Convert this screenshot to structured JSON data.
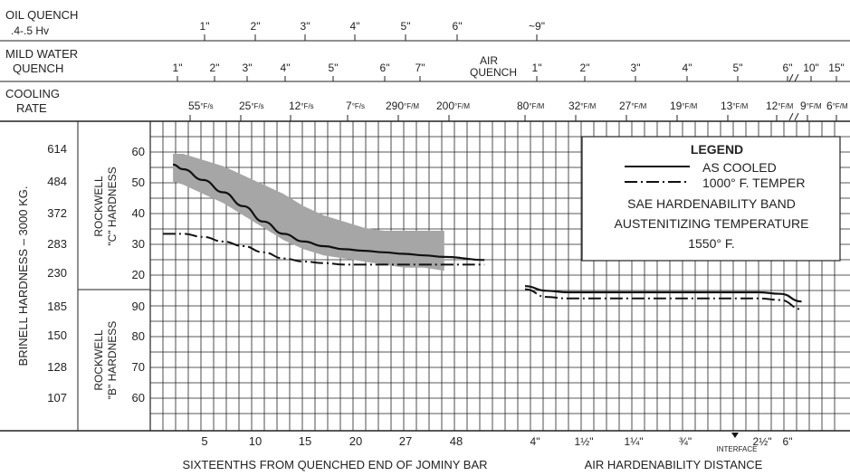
{
  "header": {
    "title_fragment": "Jominy hardenability band - 1550° F austenitizing",
    "oil_quench_label": [
      "OIL QUENCH",
      ".4-.5 Hv"
    ],
    "mild_water_label": [
      "MILD WATER",
      "QUENCH"
    ],
    "air_quench_label": [
      "AIR",
      "QUENCH"
    ],
    "cooling_rate_label": [
      "COOLING",
      "RATE"
    ],
    "oil_quench_ticks": [
      "1\"",
      "2\"",
      "3\"",
      "4\"",
      "5\"",
      "6\"",
      "~9\""
    ],
    "mild_water_ticks": [
      "1\"",
      "2\"",
      "3\"",
      "4\"",
      "5\"",
      "6\"",
      "7\""
    ],
    "air_quench_ticks": [
      "1\"",
      "2\"",
      "3\"",
      "4\"",
      "5\"",
      "6\"",
      "10\"",
      "15\""
    ],
    "cooling_rate_ticks": [
      {
        "value": "55",
        "unit": "°F/s"
      },
      {
        "value": "25",
        "unit": "°F/s"
      },
      {
        "value": "12",
        "unit": "°F/s"
      },
      {
        "value": "7",
        "unit": "°F/s"
      },
      {
        "value": "290",
        "unit": "°F/M"
      },
      {
        "value": "200",
        "unit": "°F/M"
      },
      {
        "value": "80",
        "unit": "°F/M"
      },
      {
        "value": "32",
        "unit": "°F/M"
      },
      {
        "value": "27",
        "unit": "°F/M"
      },
      {
        "value": "19",
        "unit": "°F/M"
      },
      {
        "value": "13",
        "unit": "°F/M"
      },
      {
        "value": "12",
        "unit": "°F/M"
      },
      {
        "value": "9",
        "unit": "°F/M"
      },
      {
        "value": "6",
        "unit": "°F/M"
      }
    ]
  },
  "axes": {
    "brinell_label": "BRINELL HARDNESS – 3000 KG.",
    "brinell_ticks": [
      "614",
      "484",
      "372",
      "283",
      "230",
      "185",
      "150",
      "128",
      "107"
    ],
    "rc_label": [
      "ROCKWELL",
      "\"C\" HARDNESS"
    ],
    "rc_ticks": [
      "60",
      "50",
      "40",
      "30",
      "20"
    ],
    "rb_label": [
      "ROCKWELL",
      "\"B\" HARDNESS"
    ],
    "rb_ticks": [
      "90",
      "80",
      "70",
      "60"
    ],
    "x_left_ticks": [
      "5",
      "10",
      "15",
      "20",
      "27",
      "48"
    ],
    "x_right_ticks": [
      "4\"",
      "1½\"",
      "1¼\"",
      "¾\"",
      "2½\"",
      "6\""
    ],
    "interface_label": "INTERFACE",
    "x_left_label": "SIXTEENTHS FROM QUENCHED END OF JOMINY BAR",
    "x_right_label": "AIR HARDENABILITY DISTANCE"
  },
  "legend": {
    "title": "LEGEND",
    "as_cooled": "AS COOLED",
    "temper": "1000° F. TEMPER",
    "line1": "SAE HARDENABILITY BAND",
    "line2": "AUSTENITIZING TEMPERATURE",
    "line3": "1550° F."
  },
  "colors": {
    "band": "#a6a6a6",
    "grid": "#222222",
    "curve": "#111111"
  },
  "chart_data": {
    "type": "line",
    "x_unit": "sixteenths from quenched end of Jominy bar",
    "y_unit": "Rockwell C hardness",
    "ylim": [
      20,
      60
    ],
    "band": {
      "x": [
        1,
        2,
        4,
        6,
        8,
        10,
        12,
        14,
        16,
        18,
        20,
        22,
        24,
        26,
        28
      ],
      "upper": [
        60,
        60,
        58,
        56,
        53,
        50,
        47,
        43,
        40,
        38,
        36,
        35,
        35,
        35,
        35
      ],
      "lower": [
        51,
        50,
        47,
        44,
        40,
        36,
        32,
        29,
        27,
        26,
        25,
        24,
        23,
        23,
        22
      ]
    },
    "series": [
      {
        "name": "AS COOLED",
        "style": "solid",
        "x": [
          1,
          2,
          4,
          6,
          8,
          10,
          12,
          14,
          16,
          18,
          20,
          22,
          24,
          26,
          28,
          32
        ],
        "y": [
          56.5,
          55,
          51.5,
          47.5,
          43,
          38,
          34,
          31.5,
          30,
          29,
          28.5,
          28,
          27.5,
          27,
          26.5,
          25.5
        ],
        "air_y": [
          17,
          15.5,
          15,
          15,
          15,
          15,
          15,
          15,
          15,
          15,
          15,
          15,
          14.5,
          12
        ]
      },
      {
        "name": "1000° F. TEMPER",
        "style": "dash-dot",
        "x": [
          0,
          2,
          4,
          6,
          8,
          10,
          12,
          14,
          16,
          18,
          20,
          22,
          24,
          26,
          28,
          32
        ],
        "y": [
          34,
          34,
          33,
          31.5,
          30,
          28,
          26,
          25,
          24.5,
          24,
          24,
          24,
          24,
          24,
          24,
          24
        ],
        "air_y": [
          16,
          13.5,
          13,
          13,
          13,
          13,
          13,
          13,
          13,
          13,
          13,
          13,
          12.5,
          9.5
        ]
      }
    ]
  }
}
